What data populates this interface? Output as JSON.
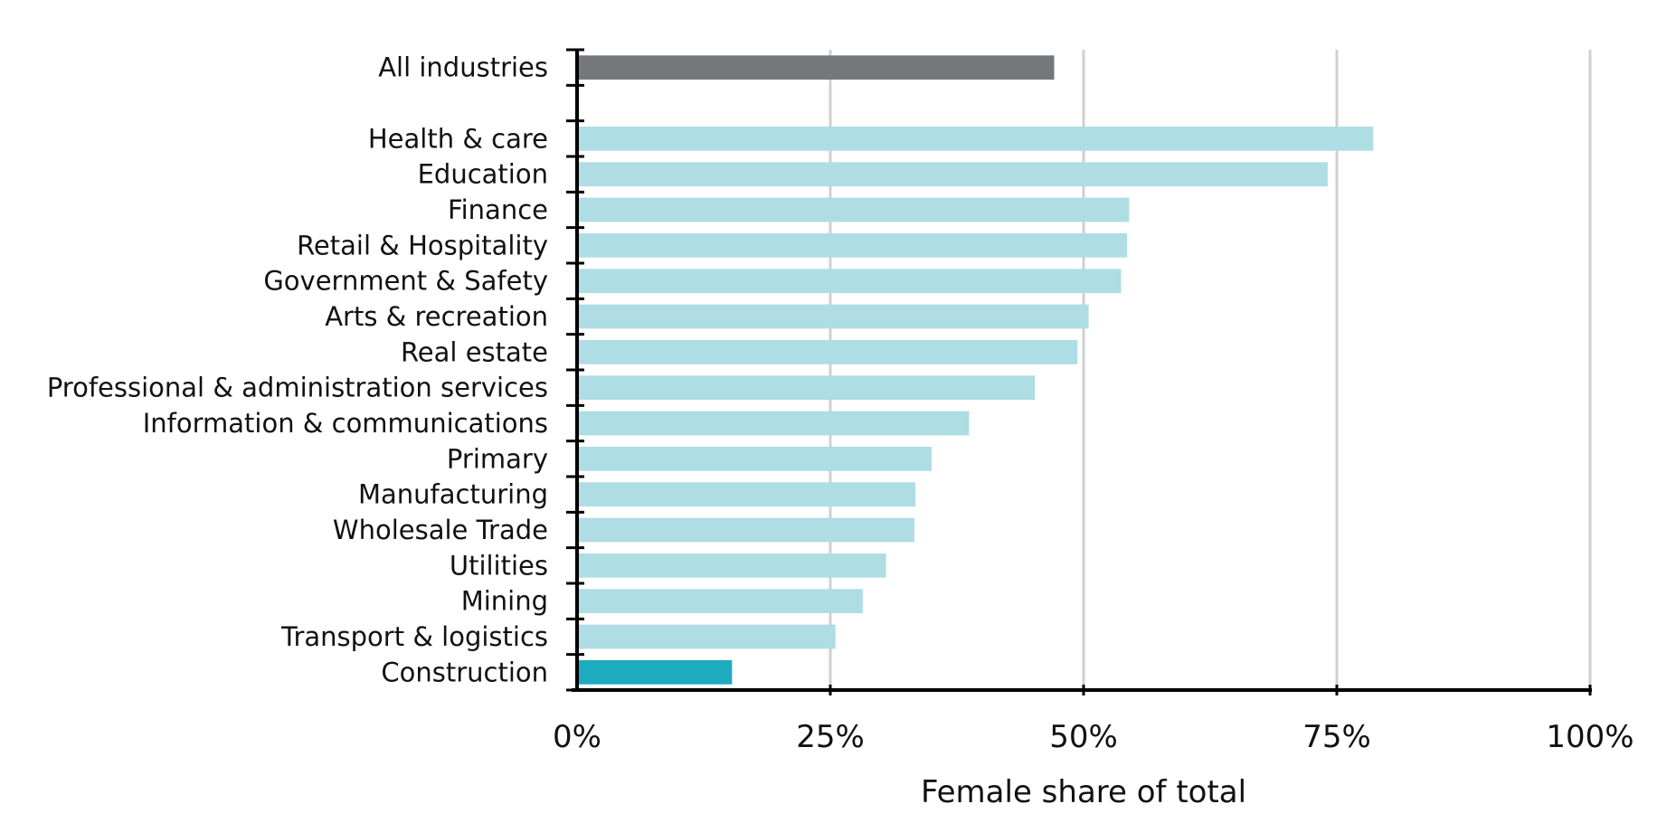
{
  "chart_data": {
    "type": "bar",
    "orientation": "horizontal",
    "title": "",
    "xlabel": "Female share of total",
    "ylabel": "",
    "xlim": [
      0,
      100
    ],
    "x_ticks": [
      0,
      25,
      50,
      75,
      100
    ],
    "x_tick_labels": [
      "0%",
      "25%",
      "50%",
      "75%",
      "100%"
    ],
    "grid": true,
    "categories": [
      "All industries",
      "",
      "Health & care",
      "Education",
      "Finance",
      "Retail & Hospitality",
      "Government & Safety",
      "Arts & recreation",
      "Real estate",
      "Professional & administration services",
      "Information & communications",
      "Primary",
      "Manufacturing",
      "Wholesale Trade",
      "Utilities",
      "Mining",
      "Transport & logistics",
      "Construction"
    ],
    "values": [
      47.1,
      null,
      78.6,
      74.1,
      54.5,
      54.3,
      53.7,
      50.5,
      49.4,
      45.2,
      38.7,
      35.0,
      33.4,
      33.3,
      30.5,
      28.2,
      25.5,
      15.3
    ],
    "colors": {
      "default": "#aedde3",
      "total": "#75787b",
      "highlight": "#1eabbf",
      "gridline": "#d0d0d0",
      "axis": "#000000"
    },
    "bar_roles": [
      "total",
      "none",
      "default",
      "default",
      "default",
      "default",
      "default",
      "default",
      "default",
      "default",
      "default",
      "default",
      "default",
      "default",
      "default",
      "default",
      "default",
      "highlight"
    ]
  }
}
